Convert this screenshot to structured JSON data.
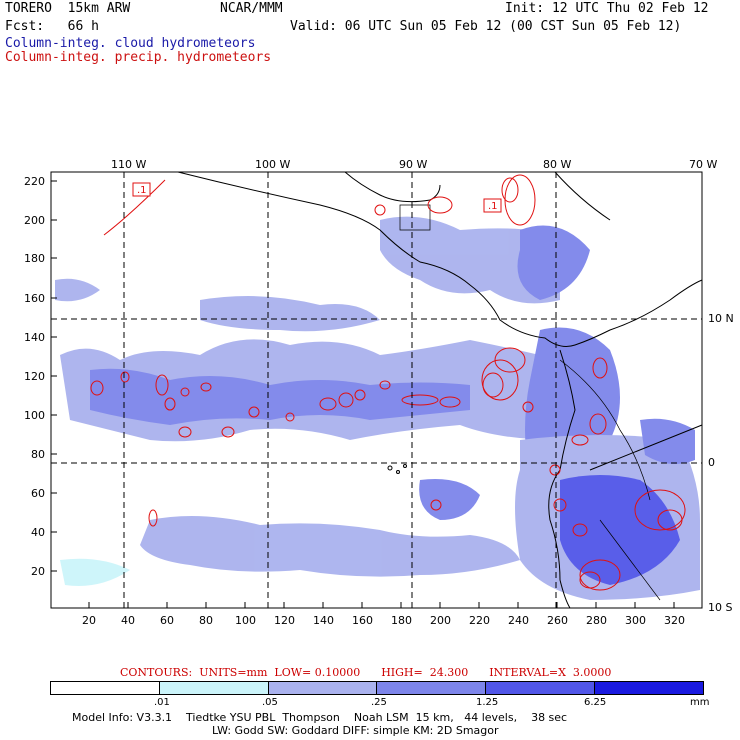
{
  "header": {
    "model": "TORERO  15km ARW",
    "center": "NCAR/MMM",
    "init": "Init: 12 UTC Thu 02 Feb 12",
    "fcst": "Fcst:   66 h",
    "valid": "Valid: 06 UTC Sun 05 Feb 12 (00 CST Sun 05 Feb 12)",
    "field1": "Column-integ. cloud hydrometeors",
    "field2": "Column-integ. precip. hydrometeors"
  },
  "top_axis": [
    "110 W",
    "100 W",
    "90 W",
    "80 W",
    "70 W"
  ],
  "left_axis": [
    "220",
    "200",
    "180",
    "160",
    "140",
    "120",
    "100",
    "80",
    "60",
    "40",
    "20"
  ],
  "bottom_axis": [
    "20",
    "40",
    "60",
    "80",
    "100",
    "120",
    "140",
    "160",
    "180",
    "200",
    "220",
    "240",
    "260",
    "280",
    "300",
    "320"
  ],
  "right_axis": [
    "10 N",
    "0",
    "10 S"
  ],
  "contour_label": "CONTOURS:  UNITS=mm  LOW= 0.10000      HIGH=  24.300      INTERVAL=X  3.0000",
  "legend": {
    "ticks": [
      ".01",
      ".05",
      ".25",
      "1.25",
      "6.25"
    ],
    "units": "mm",
    "colors": [
      "#ffffff",
      "#cbf4fa",
      "#aab2ee",
      "#7d85ea",
      "#5156e8",
      "#1a1ae0"
    ]
  },
  "model_info": [
    "Model Info: V3.3.1    Tiedtke YSU PBL  Thompson    Noah LSM  15 km,   44 levels,    38 sec",
    "LW: Godd SW: Goddard DIFF: simple KM: 2D Smagor"
  ],
  "contour_tags": [
    ".1",
    ".1"
  ]
}
